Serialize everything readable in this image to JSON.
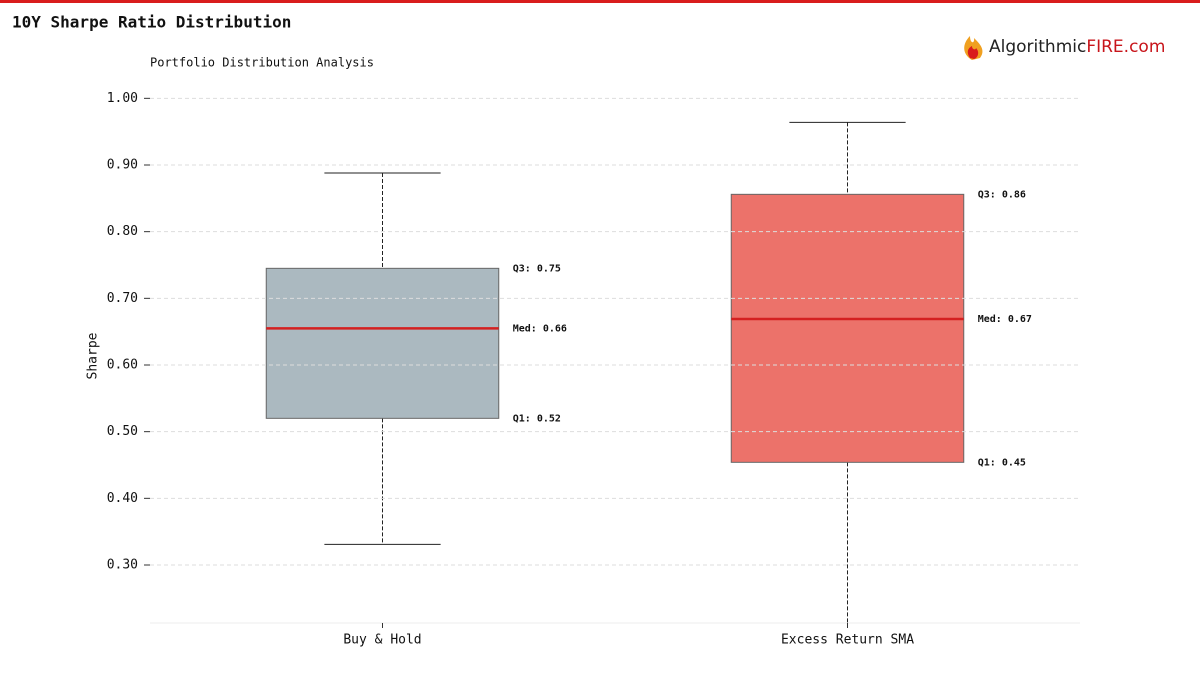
{
  "chart_data": {
    "type": "box",
    "title": "10Y Sharpe Ratio Distribution",
    "subtitle": "Portfolio Distribution Analysis",
    "logo": {
      "text": "Algorithmic",
      "accent": "FIRE.com"
    },
    "y_label": "Sharpe",
    "categories": [
      "Buy & Hold",
      "Excess Return SMA"
    ],
    "series": [
      {
        "name": "Buy & Hold",
        "color": "#a9b8bf",
        "whisker_low": 0.331,
        "q1": 0.52,
        "median": 0.655,
        "q3": 0.745,
        "whisker_high": 0.888,
        "q1_label": "Q1: 0.52",
        "median_label": "Med: 0.66",
        "q3_label": "Q3: 0.75"
      },
      {
        "name": "Excess Return SMA",
        "color": "#ec6f67",
        "whisker_low": 0.2,
        "q1": 0.454,
        "median": 0.669,
        "q3": 0.856,
        "whisker_high": 0.964,
        "q1_label": "Q1: 0.45",
        "median_label": "Med: 0.67",
        "q3_label": "Q3: 0.86"
      }
    ],
    "median_color": "#d42020",
    "ylim": [
      0.213,
      1.011
    ],
    "yticks": [
      {
        "value": 0.3,
        "label": "0.30"
      },
      {
        "value": 0.4,
        "label": "0.40"
      },
      {
        "value": 0.5,
        "label": "0.50"
      },
      {
        "value": 0.6,
        "label": "0.60"
      },
      {
        "value": 0.7,
        "label": "0.70"
      },
      {
        "value": 0.8,
        "label": "0.80"
      },
      {
        "value": 0.9,
        "label": "0.90"
      },
      {
        "value": 1.0,
        "label": "1.00"
      }
    ],
    "grid": true
  }
}
